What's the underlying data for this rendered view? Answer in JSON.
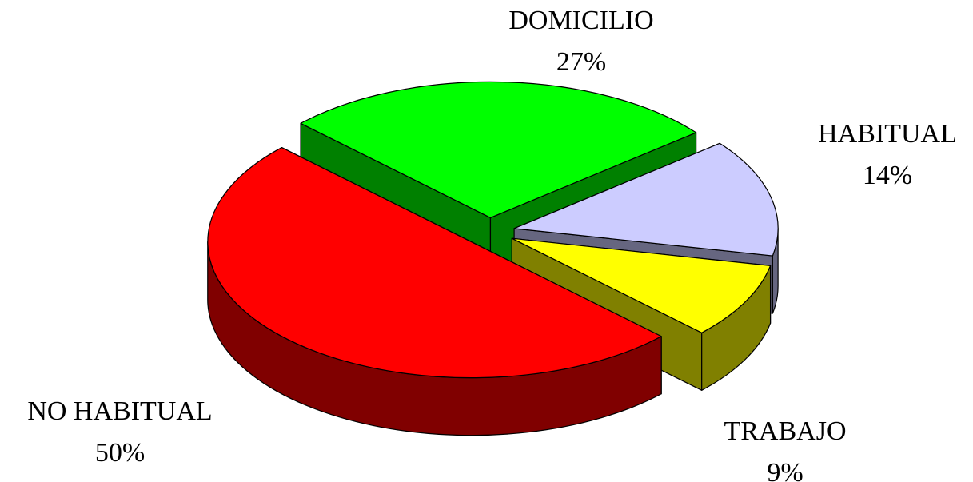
{
  "chart_data": {
    "type": "pie3d",
    "categories": [
      "DOMICILIO",
      "HABITUAL",
      "TRABAJO",
      "NO HABITUAL"
    ],
    "values": [
      27,
      14,
      9,
      50
    ],
    "value_labels": [
      "27%",
      "14%",
      "9%",
      "50%"
    ],
    "colors": [
      "#00ff00",
      "#ccccff",
      "#ffff00",
      "#ff0000"
    ]
  }
}
